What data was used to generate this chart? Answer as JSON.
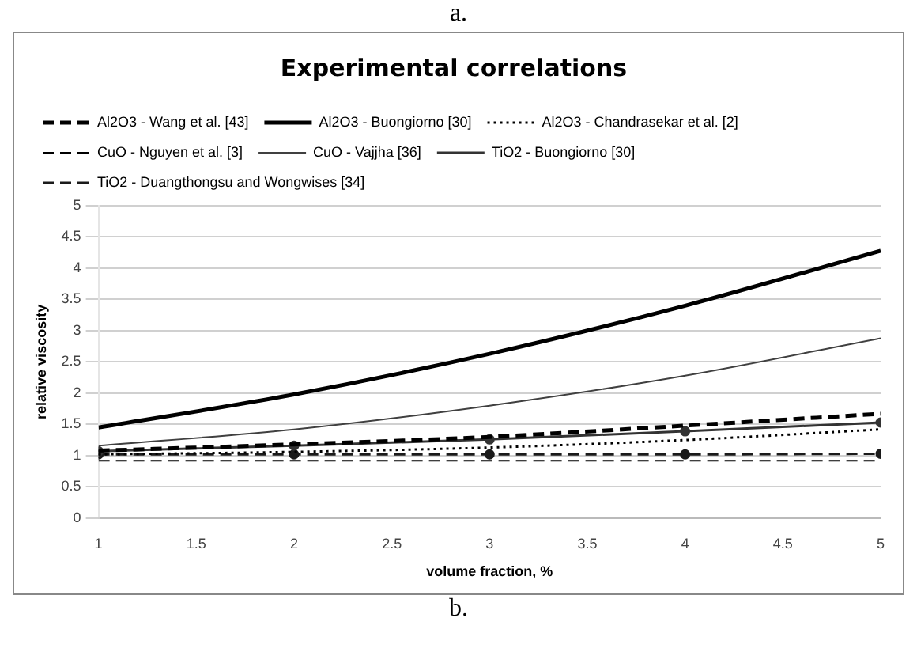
{
  "chart_data": {
    "type": "line",
    "title": "Experimental correlations",
    "xlabel": "volume fraction, %",
    "ylabel": "relative viscosity",
    "annotations": [
      "a.",
      "b."
    ],
    "x": [
      1,
      2,
      3,
      4,
      5
    ],
    "series": [
      {
        "name": "Al2O3 - Wang et al. [43]",
        "color": "#000000",
        "line_style": "dashed",
        "marker": "none",
        "values": [
          1.08,
          1.18,
          1.3,
          1.48,
          1.67
        ]
      },
      {
        "name": "Al2O3 - Buongiorno [30]",
        "color": "#000000",
        "line_style": "solid",
        "marker": "none",
        "values": [
          1.45,
          1.98,
          2.63,
          3.4,
          4.28
        ]
      },
      {
        "name": "Al2O3 - Chandrasekar et al. [2]",
        "color": "#000000",
        "line_style": "dotted",
        "marker": "none",
        "values": [
          1.02,
          1.06,
          1.13,
          1.25,
          1.42
        ]
      },
      {
        "name": "CuO - Nguyen et al. [3]",
        "color": "#000000",
        "line_style": "dashed",
        "marker": "none",
        "values": [
          0.92,
          0.92,
          0.92,
          0.92,
          0.92
        ]
      },
      {
        "name": "CuO - Vajjha [36]",
        "color": "#404040",
        "line_style": "solid",
        "marker": "none",
        "values": [
          1.16,
          1.42,
          1.8,
          2.28,
          2.88
        ]
      },
      {
        "name": "TiO2 - Buongiorno [30]",
        "color": "#333333",
        "line_style": "solid",
        "marker": "circle",
        "values": [
          1.07,
          1.16,
          1.26,
          1.39,
          1.53
        ]
      },
      {
        "name": "TiO2 - Duangthongsu and Wongwises [34]",
        "color": "#1a1a1a",
        "line_style": "dashed",
        "marker": "circle",
        "values": [
          1.02,
          1.02,
          1.02,
          1.02,
          1.03
        ]
      }
    ],
    "xlim": [
      1,
      5
    ],
    "xticks": [
      1,
      1.5,
      2,
      2.5,
      3,
      3.5,
      4,
      4.5,
      5
    ],
    "ylim": [
      0,
      5
    ],
    "yticks": [
      0,
      0.5,
      1,
      1.5,
      2,
      2.5,
      3,
      3.5,
      4,
      4.5,
      5
    ],
    "grid": "y",
    "legend": "top"
  }
}
